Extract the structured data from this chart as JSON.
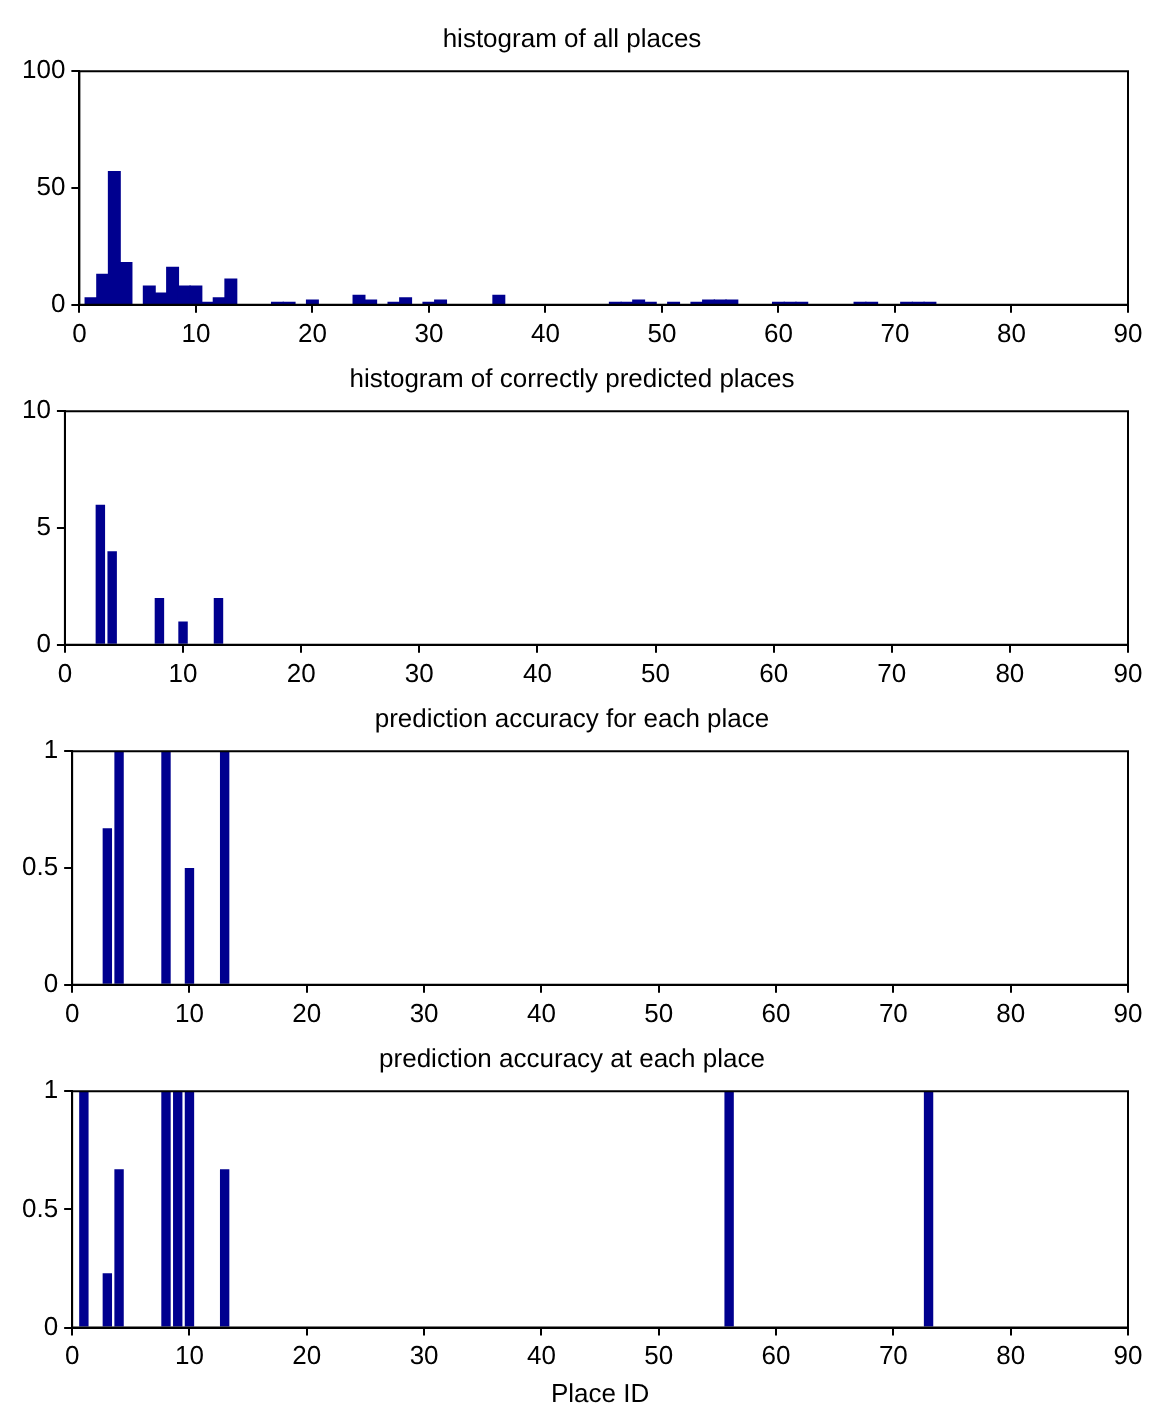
{
  "chart_data": [
    {
      "type": "bar",
      "title": "histogram of all places",
      "x": [
        1,
        2,
        3,
        4,
        6,
        7,
        8,
        9,
        10,
        11,
        12,
        13,
        17,
        18,
        20,
        24,
        25,
        27,
        28,
        30,
        31,
        36,
        46,
        47,
        48,
        49,
        51,
        53,
        54,
        55,
        56,
        60,
        61,
        62,
        67,
        68,
        71,
        72,
        73
      ],
      "values": [
        3,
        13,
        57,
        18,
        8,
        5,
        16,
        8,
        8,
        1,
        3,
        11,
        1,
        1,
        2,
        4,
        2,
        1,
        3,
        1,
        2,
        4,
        1,
        1,
        2,
        1,
        1,
        1,
        2,
        2,
        2,
        1,
        1,
        1,
        1,
        1,
        1,
        1,
        1
      ],
      "color": "#00008f",
      "xlim": [
        0,
        90
      ],
      "xticks": [
        0,
        10,
        20,
        30,
        40,
        50,
        60,
        70,
        80,
        90
      ],
      "ylim": [
        0,
        100
      ],
      "yticks": [
        0,
        50,
        100
      ],
      "grid": false
    },
    {
      "type": "bar",
      "title": "histogram of correctly predicted places",
      "x": [
        3,
        4,
        8,
        10,
        13
      ],
      "values": [
        6,
        4,
        2,
        1,
        2
      ],
      "color": "#00008f",
      "xlim": [
        0,
        90
      ],
      "xticks": [
        0,
        10,
        20,
        30,
        40,
        50,
        60,
        70,
        80,
        90
      ],
      "ylim": [
        0,
        10
      ],
      "yticks": [
        0,
        5,
        10
      ],
      "grid": false
    },
    {
      "type": "bar",
      "title": "prediction accuracy for each place",
      "x": [
        3,
        4,
        8,
        10,
        13
      ],
      "values": [
        0.67,
        1,
        1,
        0.5,
        1
      ],
      "color": "#00008f",
      "xlim": [
        0,
        90
      ],
      "xticks": [
        0,
        10,
        20,
        30,
        40,
        50,
        60,
        70,
        80,
        90
      ],
      "ylim": [
        0,
        1
      ],
      "yticks": [
        0,
        0.5,
        1
      ],
      "grid": false
    },
    {
      "type": "bar",
      "title": "prediction accuracy at each place",
      "xlabel": "Place ID",
      "x": [
        1,
        3,
        4,
        8,
        9,
        10,
        13,
        56,
        73
      ],
      "values": [
        1,
        0.23,
        0.67,
        1,
        1,
        1,
        0.67,
        1,
        1
      ],
      "color": "#00008f",
      "xlim": [
        0,
        90
      ],
      "xticks": [
        0,
        10,
        20,
        30,
        40,
        50,
        60,
        70,
        80,
        90
      ],
      "ylim": [
        0,
        1
      ],
      "yticks": [
        0,
        0.5,
        1
      ],
      "grid": false
    }
  ]
}
